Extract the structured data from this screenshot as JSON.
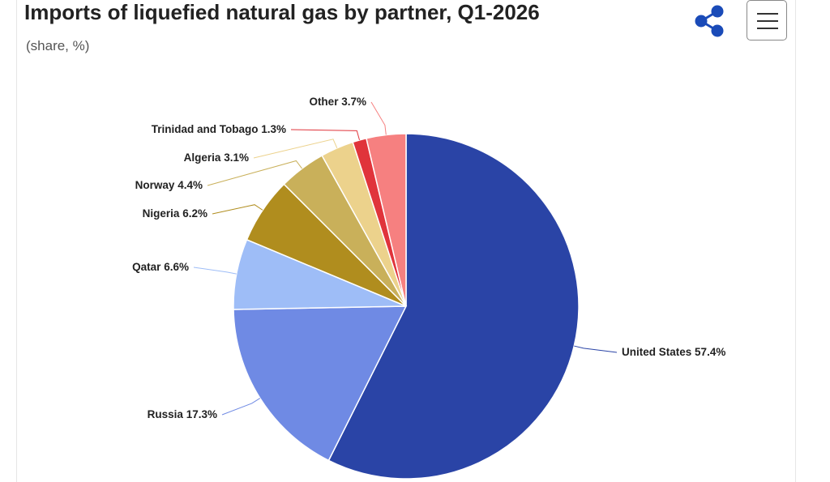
{
  "chart_data": {
    "type": "pie",
    "title": "Imports of liquefied natural gas by partner, Q1-2026",
    "subtitle": "(share, %)",
    "categories": [
      "United States",
      "Russia",
      "Qatar",
      "Nigeria",
      "Norway",
      "Algeria",
      "Trinidad and Tobago",
      "Other"
    ],
    "values": [
      57.4,
      17.3,
      6.6,
      6.2,
      4.4,
      3.1,
      1.3,
      3.7
    ],
    "value_labels": [
      "57.4%",
      "17.3%",
      "6.6%",
      "6.2%",
      "4.4%",
      "3.1%",
      "1.3%",
      "3.7%"
    ],
    "colors": [
      "#2a44a6",
      "#6f8ae4",
      "#9ebdf7",
      "#b08d1e",
      "#c9b05a",
      "#ecd28c",
      "#e0343b",
      "#f68080"
    ]
  }
}
